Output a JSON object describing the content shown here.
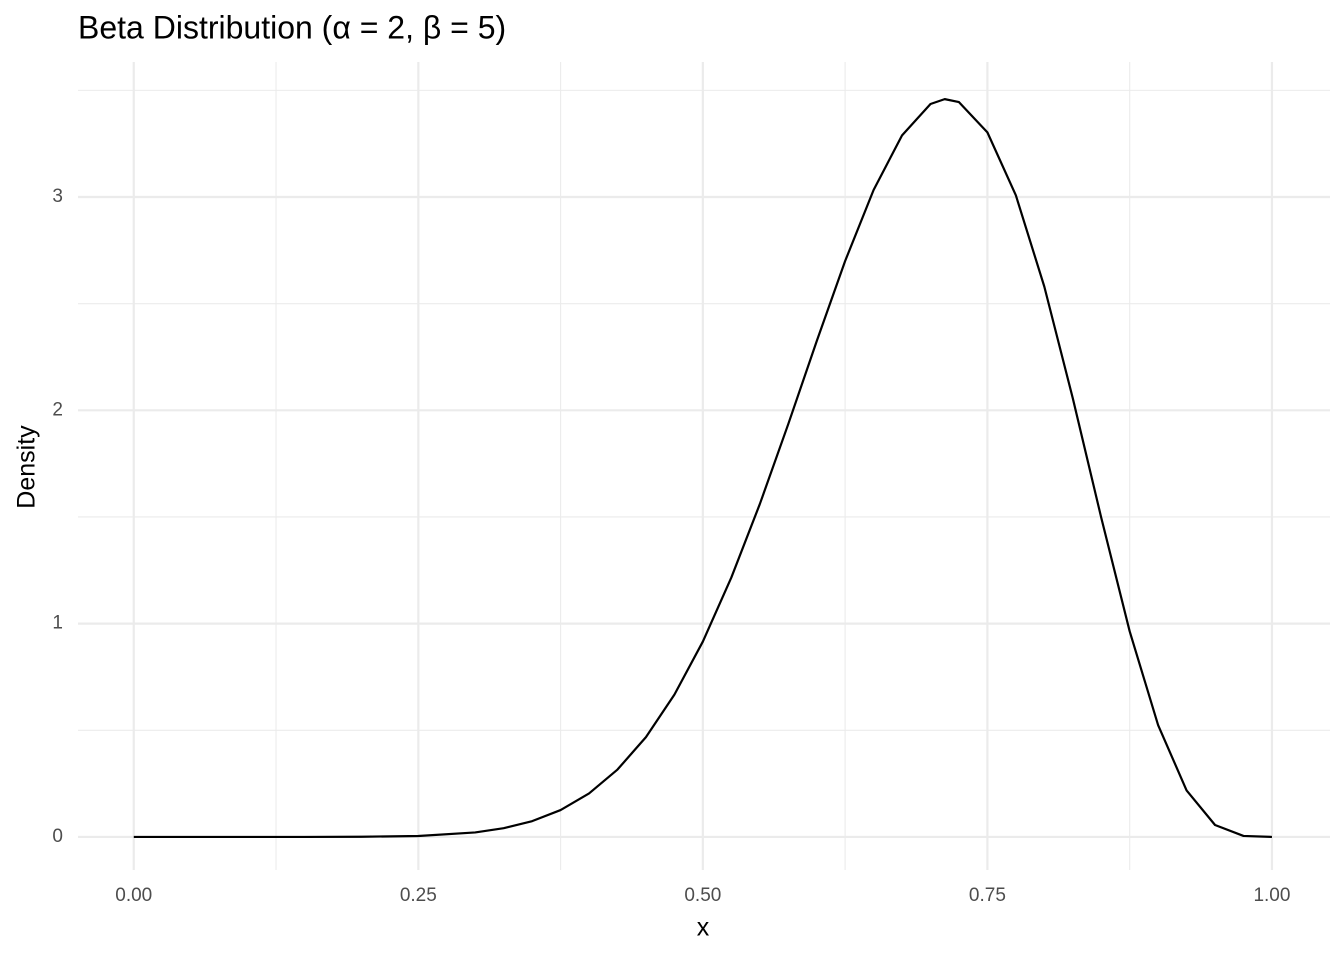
{
  "chart_data": {
    "type": "line",
    "title": "Beta Distribution (α = 2, β = 5)",
    "x_label": "x",
    "y_label": "Density",
    "x": [
      0,
      0.05,
      0.1,
      0.15,
      0.2,
      0.25,
      0.3,
      0.325,
      0.35,
      0.375,
      0.4,
      0.425,
      0.45,
      0.475,
      0.5,
      0.525,
      0.55,
      0.575,
      0.6,
      0.625,
      0.65,
      0.675,
      0.7,
      0.7125,
      0.725,
      0.75,
      0.775,
      0.8,
      0.825,
      0.85,
      0.875,
      0.9,
      0.925,
      0.95,
      0.975,
      1
    ],
    "series": [
      {
        "color": "#000000",
        "values": [
          0,
          0,
          0,
          0,
          0.001,
          0.0045,
          0.021,
          0.041,
          0.074,
          0.126,
          0.204,
          0.316,
          0.468,
          0.667,
          0.916,
          1.216,
          1.56,
          1.935,
          2.324,
          2.7,
          3.033,
          3.289,
          3.436,
          3.459,
          3.445,
          3.303,
          3.008,
          2.58,
          2.057,
          1.497,
          0.964,
          0.524,
          0.218,
          0.056,
          0.0046,
          0
        ]
      }
    ],
    "xlim": [
      -0.049,
      1.051
    ],
    "ylim": [
      -0.155,
      3.633
    ],
    "xticks": [
      {
        "value": 0,
        "label": "0.00"
      },
      {
        "value": 0.25,
        "label": "0.25"
      },
      {
        "value": 0.5,
        "label": "0.50"
      },
      {
        "value": 0.75,
        "label": "0.75"
      },
      {
        "value": 1,
        "label": "1.00"
      }
    ],
    "yticks": [
      0,
      1,
      2,
      3
    ],
    "minor_xticks": [
      0.125,
      0.375,
      0.625,
      0.875
    ],
    "minor_yticks": [
      0.5,
      1.5,
      2.5,
      3.5
    ],
    "grid": true
  }
}
